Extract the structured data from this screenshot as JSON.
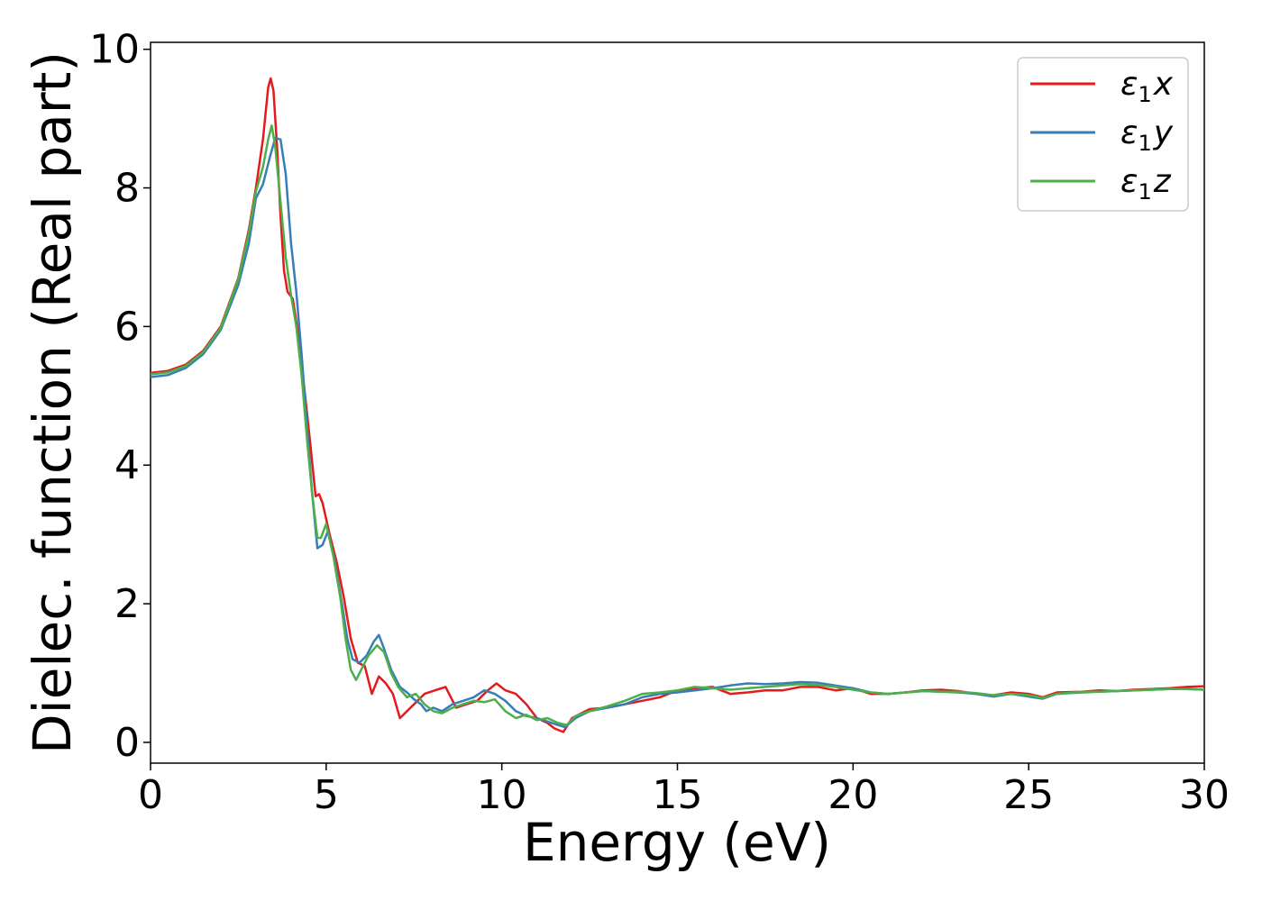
{
  "chart_data": {
    "type": "line",
    "xlabel": "Energy (eV)",
    "ylabel": "Dielec. function (Real part)",
    "xlim": [
      0,
      30
    ],
    "ylim": [
      -0.3,
      10.1
    ],
    "xticks": [
      0,
      5,
      10,
      15,
      20,
      25,
      30
    ],
    "yticks": [
      0,
      2,
      4,
      6,
      8,
      10
    ],
    "grid": false,
    "legend_position": "top-right",
    "series": [
      {
        "name": "ε1x",
        "legend_base": "ε",
        "legend_sub": "1",
        "legend_tail": "x",
        "color": "#e41a1c",
        "points": [
          [
            0,
            5.33
          ],
          [
            0.5,
            5.36
          ],
          [
            1.0,
            5.45
          ],
          [
            1.5,
            5.65
          ],
          [
            2.0,
            6.0
          ],
          [
            2.5,
            6.7
          ],
          [
            2.8,
            7.4
          ],
          [
            3.0,
            8.0
          ],
          [
            3.2,
            8.7
          ],
          [
            3.35,
            9.45
          ],
          [
            3.42,
            9.58
          ],
          [
            3.5,
            9.4
          ],
          [
            3.6,
            8.6
          ],
          [
            3.7,
            7.6
          ],
          [
            3.8,
            6.8
          ],
          [
            3.9,
            6.5
          ],
          [
            4.05,
            6.4
          ],
          [
            4.2,
            5.9
          ],
          [
            4.4,
            5.0
          ],
          [
            4.55,
            4.3
          ],
          [
            4.7,
            3.55
          ],
          [
            4.8,
            3.58
          ],
          [
            4.9,
            3.45
          ],
          [
            5.1,
            3.0
          ],
          [
            5.3,
            2.6
          ],
          [
            5.5,
            2.1
          ],
          [
            5.7,
            1.5
          ],
          [
            5.9,
            1.15
          ],
          [
            6.1,
            1.1
          ],
          [
            6.3,
            0.7
          ],
          [
            6.5,
            0.95
          ],
          [
            6.7,
            0.85
          ],
          [
            6.9,
            0.7
          ],
          [
            7.1,
            0.35
          ],
          [
            7.3,
            0.45
          ],
          [
            7.5,
            0.55
          ],
          [
            7.8,
            0.7
          ],
          [
            8.1,
            0.75
          ],
          [
            8.4,
            0.8
          ],
          [
            8.7,
            0.5
          ],
          [
            9.0,
            0.55
          ],
          [
            9.3,
            0.6
          ],
          [
            9.6,
            0.75
          ],
          [
            9.85,
            0.85
          ],
          [
            10.1,
            0.75
          ],
          [
            10.4,
            0.7
          ],
          [
            10.7,
            0.55
          ],
          [
            11.0,
            0.35
          ],
          [
            11.3,
            0.28
          ],
          [
            11.5,
            0.2
          ],
          [
            11.75,
            0.15
          ],
          [
            12.0,
            0.35
          ],
          [
            12.5,
            0.48
          ],
          [
            13.0,
            0.5
          ],
          [
            13.5,
            0.55
          ],
          [
            14.0,
            0.6
          ],
          [
            14.5,
            0.65
          ],
          [
            15.0,
            0.75
          ],
          [
            15.5,
            0.78
          ],
          [
            16.0,
            0.8
          ],
          [
            16.5,
            0.7
          ],
          [
            17.0,
            0.72
          ],
          [
            17.5,
            0.75
          ],
          [
            18.0,
            0.75
          ],
          [
            18.5,
            0.8
          ],
          [
            19.0,
            0.8
          ],
          [
            19.5,
            0.75
          ],
          [
            20.0,
            0.78
          ],
          [
            20.5,
            0.7
          ],
          [
            21.0,
            0.7
          ],
          [
            21.5,
            0.72
          ],
          [
            22.0,
            0.75
          ],
          [
            22.5,
            0.76
          ],
          [
            23.0,
            0.74
          ],
          [
            23.5,
            0.7
          ],
          [
            24.0,
            0.68
          ],
          [
            24.5,
            0.72
          ],
          [
            25.0,
            0.7
          ],
          [
            25.4,
            0.65
          ],
          [
            25.8,
            0.72
          ],
          [
            26.5,
            0.73
          ],
          [
            27.0,
            0.75
          ],
          [
            27.5,
            0.74
          ],
          [
            28.0,
            0.76
          ],
          [
            28.5,
            0.77
          ],
          [
            29.0,
            0.78
          ],
          [
            29.5,
            0.8
          ],
          [
            30.0,
            0.81
          ]
        ]
      },
      {
        "name": "ε1y",
        "legend_base": "ε",
        "legend_sub": "1",
        "legend_tail": "y",
        "color": "#377eb8",
        "points": [
          [
            0,
            5.27
          ],
          [
            0.5,
            5.3
          ],
          [
            1.0,
            5.4
          ],
          [
            1.5,
            5.6
          ],
          [
            2.0,
            5.95
          ],
          [
            2.5,
            6.6
          ],
          [
            2.8,
            7.2
          ],
          [
            3.0,
            7.85
          ],
          [
            3.2,
            8.05
          ],
          [
            3.4,
            8.45
          ],
          [
            3.55,
            8.72
          ],
          [
            3.7,
            8.7
          ],
          [
            3.85,
            8.2
          ],
          [
            4.0,
            7.2
          ],
          [
            4.15,
            6.5
          ],
          [
            4.3,
            5.6
          ],
          [
            4.45,
            4.6
          ],
          [
            4.6,
            3.6
          ],
          [
            4.75,
            2.8
          ],
          [
            4.9,
            2.85
          ],
          [
            5.05,
            3.05
          ],
          [
            5.25,
            2.6
          ],
          [
            5.45,
            2.0
          ],
          [
            5.6,
            1.5
          ],
          [
            5.75,
            1.2
          ],
          [
            5.95,
            1.15
          ],
          [
            6.15,
            1.25
          ],
          [
            6.35,
            1.45
          ],
          [
            6.5,
            1.55
          ],
          [
            6.65,
            1.35
          ],
          [
            6.85,
            1.05
          ],
          [
            7.1,
            0.8
          ],
          [
            7.3,
            0.72
          ],
          [
            7.5,
            0.62
          ],
          [
            7.7,
            0.55
          ],
          [
            7.85,
            0.45
          ],
          [
            8.05,
            0.5
          ],
          [
            8.3,
            0.45
          ],
          [
            8.6,
            0.55
          ],
          [
            8.9,
            0.6
          ],
          [
            9.2,
            0.65
          ],
          [
            9.5,
            0.75
          ],
          [
            9.8,
            0.7
          ],
          [
            10.1,
            0.6
          ],
          [
            10.4,
            0.45
          ],
          [
            10.7,
            0.38
          ],
          [
            11.0,
            0.35
          ],
          [
            11.3,
            0.3
          ],
          [
            11.6,
            0.25
          ],
          [
            11.8,
            0.22
          ],
          [
            12.1,
            0.35
          ],
          [
            12.5,
            0.45
          ],
          [
            13.0,
            0.5
          ],
          [
            13.5,
            0.55
          ],
          [
            14.0,
            0.65
          ],
          [
            14.5,
            0.7
          ],
          [
            15.0,
            0.72
          ],
          [
            15.5,
            0.75
          ],
          [
            16.0,
            0.78
          ],
          [
            16.5,
            0.82
          ],
          [
            17.0,
            0.85
          ],
          [
            17.5,
            0.84
          ],
          [
            18.0,
            0.85
          ],
          [
            18.5,
            0.87
          ],
          [
            19.0,
            0.86
          ],
          [
            19.5,
            0.82
          ],
          [
            20.0,
            0.78
          ],
          [
            20.5,
            0.72
          ],
          [
            21.0,
            0.7
          ],
          [
            21.5,
            0.72
          ],
          [
            22.0,
            0.74
          ],
          [
            22.5,
            0.73
          ],
          [
            23.0,
            0.72
          ],
          [
            23.5,
            0.7
          ],
          [
            24.0,
            0.66
          ],
          [
            24.5,
            0.7
          ],
          [
            25.0,
            0.66
          ],
          [
            25.4,
            0.63
          ],
          [
            25.8,
            0.7
          ],
          [
            26.5,
            0.72
          ],
          [
            27.0,
            0.73
          ],
          [
            27.5,
            0.74
          ],
          [
            28.0,
            0.75
          ],
          [
            28.5,
            0.76
          ],
          [
            29.0,
            0.77
          ],
          [
            29.5,
            0.77
          ],
          [
            30.0,
            0.76
          ]
        ]
      },
      {
        "name": "ε1z",
        "legend_base": "ε",
        "legend_sub": "1",
        "legend_tail": "z",
        "color": "#4daf4a",
        "points": [
          [
            0,
            5.31
          ],
          [
            0.5,
            5.34
          ],
          [
            1.0,
            5.43
          ],
          [
            1.5,
            5.63
          ],
          [
            2.0,
            5.98
          ],
          [
            2.5,
            6.68
          ],
          [
            2.8,
            7.35
          ],
          [
            3.0,
            7.95
          ],
          [
            3.2,
            8.3
          ],
          [
            3.35,
            8.7
          ],
          [
            3.45,
            8.9
          ],
          [
            3.55,
            8.6
          ],
          [
            3.7,
            7.8
          ],
          [
            3.85,
            7.0
          ],
          [
            4.0,
            6.45
          ],
          [
            4.15,
            6.0
          ],
          [
            4.3,
            5.3
          ],
          [
            4.45,
            4.4
          ],
          [
            4.6,
            3.6
          ],
          [
            4.75,
            2.95
          ],
          [
            4.85,
            2.95
          ],
          [
            5.0,
            3.15
          ],
          [
            5.2,
            2.7
          ],
          [
            5.4,
            2.1
          ],
          [
            5.55,
            1.5
          ],
          [
            5.7,
            1.05
          ],
          [
            5.85,
            0.9
          ],
          [
            6.0,
            1.05
          ],
          [
            6.2,
            1.25
          ],
          [
            6.45,
            1.4
          ],
          [
            6.65,
            1.3
          ],
          [
            6.85,
            1.0
          ],
          [
            7.05,
            0.8
          ],
          [
            7.3,
            0.65
          ],
          [
            7.55,
            0.7
          ],
          [
            7.8,
            0.55
          ],
          [
            8.05,
            0.45
          ],
          [
            8.3,
            0.42
          ],
          [
            8.6,
            0.5
          ],
          [
            8.9,
            0.55
          ],
          [
            9.2,
            0.6
          ],
          [
            9.5,
            0.58
          ],
          [
            9.8,
            0.62
          ],
          [
            10.1,
            0.45
          ],
          [
            10.4,
            0.35
          ],
          [
            10.7,
            0.4
          ],
          [
            11.0,
            0.32
          ],
          [
            11.3,
            0.35
          ],
          [
            11.6,
            0.28
          ],
          [
            11.85,
            0.25
          ],
          [
            12.1,
            0.38
          ],
          [
            12.5,
            0.45
          ],
          [
            13.0,
            0.52
          ],
          [
            13.5,
            0.6
          ],
          [
            14.0,
            0.7
          ],
          [
            14.5,
            0.72
          ],
          [
            15.0,
            0.75
          ],
          [
            15.5,
            0.8
          ],
          [
            16.0,
            0.78
          ],
          [
            16.5,
            0.76
          ],
          [
            17.0,
            0.78
          ],
          [
            17.5,
            0.8
          ],
          [
            18.0,
            0.82
          ],
          [
            18.5,
            0.84
          ],
          [
            19.0,
            0.83
          ],
          [
            19.5,
            0.8
          ],
          [
            20.0,
            0.76
          ],
          [
            20.5,
            0.72
          ],
          [
            21.0,
            0.7
          ],
          [
            21.5,
            0.72
          ],
          [
            22.0,
            0.74
          ],
          [
            22.5,
            0.73
          ],
          [
            23.0,
            0.73
          ],
          [
            23.5,
            0.71
          ],
          [
            24.0,
            0.68
          ],
          [
            24.5,
            0.7
          ],
          [
            25.0,
            0.68
          ],
          [
            25.4,
            0.64
          ],
          [
            25.8,
            0.7
          ],
          [
            26.5,
            0.73
          ],
          [
            27.0,
            0.73
          ],
          [
            27.5,
            0.74
          ],
          [
            28.0,
            0.75
          ],
          [
            28.5,
            0.76
          ],
          [
            29.0,
            0.77
          ],
          [
            29.5,
            0.77
          ],
          [
            30.0,
            0.76
          ]
        ]
      }
    ]
  }
}
